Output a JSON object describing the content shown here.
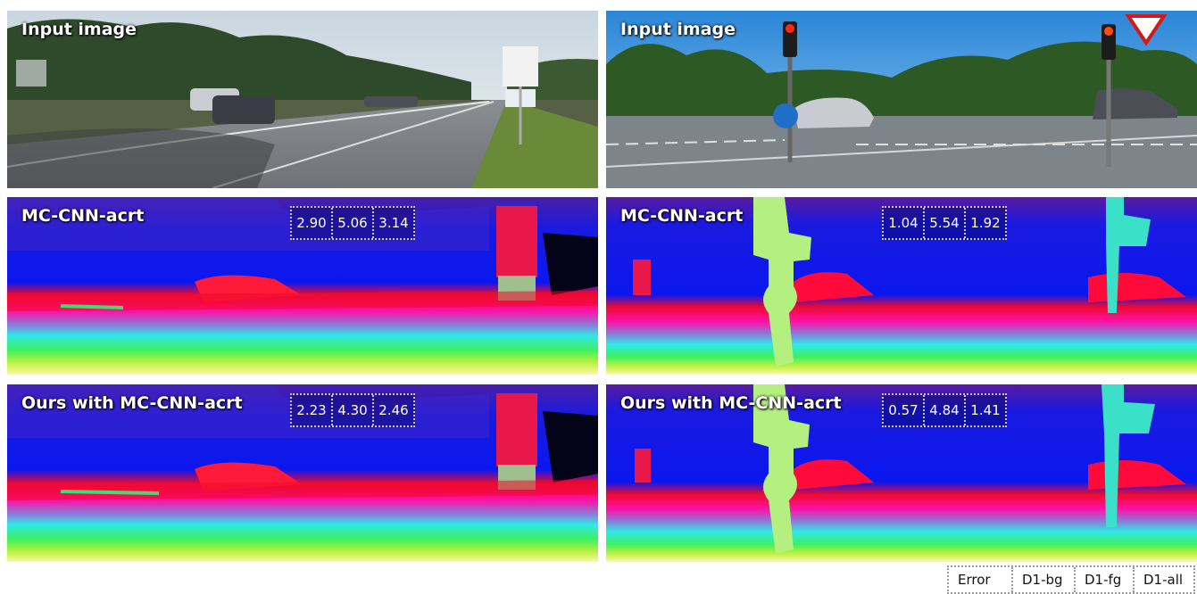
{
  "left_column": {
    "input_caption": "Input image",
    "baseline_caption": "MC-CNN-acrt",
    "baseline_errors": [
      "2.90",
      "5.06",
      "3.14"
    ],
    "ours_caption": "Ours with MC-CNN-acrt",
    "ours_errors": [
      "2.23",
      "4.30",
      "2.46"
    ]
  },
  "right_column": {
    "input_caption": "Input image",
    "baseline_caption": "MC-CNN-acrt",
    "baseline_errors": [
      "1.04",
      "5.54",
      "1.92"
    ],
    "ours_caption": "Ours with MC-CNN-acrt",
    "ours_errors": [
      "0.57",
      "4.84",
      "1.41"
    ]
  },
  "legend": {
    "error": "Error",
    "d1_bg": "D1-bg",
    "d1_fg": "D1-fg",
    "d1_all": "D1-all"
  }
}
